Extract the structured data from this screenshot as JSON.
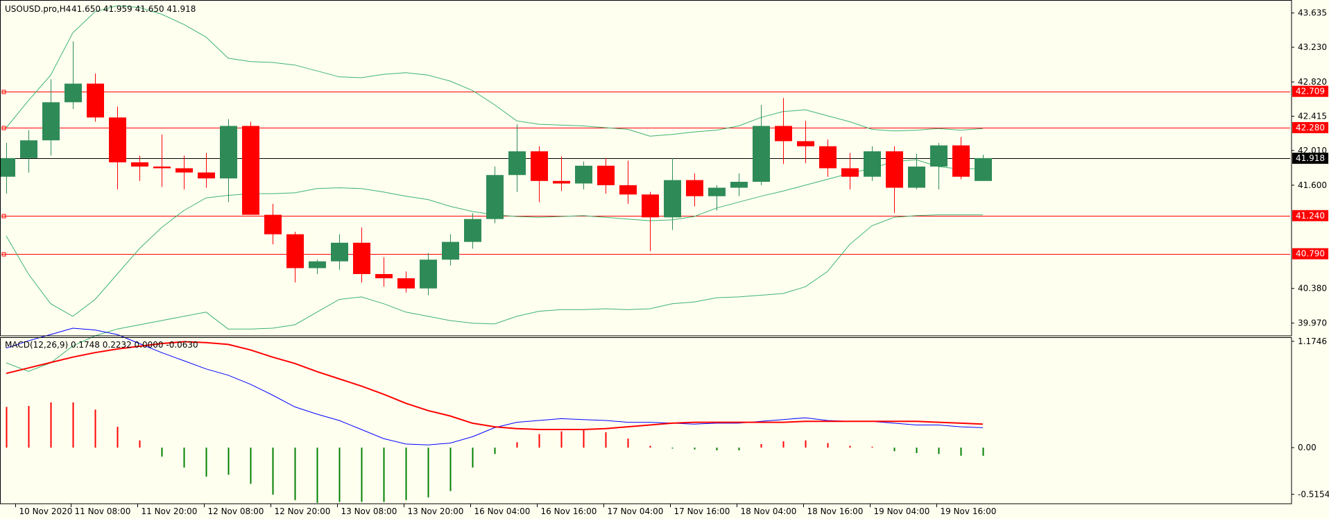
{
  "chart_data": [
    {
      "type": "candlestick",
      "symbol_header": "USOUSD.pro,H4",
      "ohlc_header": "41.650 41.959 41.650 41.918",
      "ylim": [
        39.82,
        43.78
      ],
      "y_ticks": [
        "43.635",
        "43.230",
        "42.820",
        "42.415",
        "42.010",
        "41.600",
        "40.380",
        "39.970"
      ],
      "x_tick_labels": [
        "10 Nov 2020",
        "11 Nov 08:00",
        "11 Nov 20:00",
        "12 Nov 08:00",
        "12 Nov 20:00",
        "13 Nov 08:00",
        "13 Nov 20:00",
        "16 Nov 04:00",
        "16 Nov 16:00",
        "17 Nov 04:00",
        "17 Nov 16:00",
        "18 Nov 04:00",
        "18 Nov 16:00",
        "19 Nov 04:00",
        "19 Nov 16:00"
      ],
      "x_tick_bars": [
        0.5,
        3,
        6,
        9,
        12,
        15,
        18,
        21,
        24,
        27,
        30,
        33,
        36,
        39,
        42
      ],
      "candles": [
        [
          41.7,
          42.1,
          41.5,
          41.92
        ],
        [
          41.92,
          42.25,
          41.75,
          42.13
        ],
        [
          42.13,
          42.85,
          41.95,
          42.58
        ],
        [
          42.58,
          43.3,
          42.5,
          42.8
        ],
        [
          42.8,
          42.92,
          42.35,
          42.4
        ],
        [
          42.4,
          42.53,
          41.55,
          41.87
        ],
        [
          41.87,
          41.95,
          41.65,
          41.82
        ],
        [
          41.82,
          42.2,
          41.58,
          41.8
        ],
        [
          41.8,
          41.95,
          41.55,
          41.75
        ],
        [
          41.75,
          41.98,
          41.57,
          41.68
        ],
        [
          41.68,
          42.38,
          41.4,
          42.3
        ],
        [
          42.3,
          42.35,
          41.25,
          41.25
        ],
        [
          41.25,
          41.38,
          40.9,
          41.02
        ],
        [
          41.02,
          41.05,
          40.45,
          40.62
        ],
        [
          40.62,
          40.72,
          40.55,
          40.7
        ],
        [
          40.7,
          41.02,
          40.6,
          40.92
        ],
        [
          40.92,
          41.1,
          40.45,
          40.55
        ],
        [
          40.55,
          40.75,
          40.4,
          40.5
        ],
        [
          40.5,
          40.58,
          40.33,
          40.38
        ],
        [
          40.38,
          40.8,
          40.3,
          40.72
        ],
        [
          40.72,
          41.02,
          40.65,
          40.93
        ],
        [
          40.93,
          41.27,
          40.85,
          41.2
        ],
        [
          41.2,
          41.82,
          41.15,
          41.72
        ],
        [
          41.72,
          42.32,
          41.52,
          42.0
        ],
        [
          42.0,
          42.06,
          41.4,
          41.65
        ],
        [
          41.65,
          41.94,
          41.53,
          41.62
        ],
        [
          41.62,
          41.88,
          41.55,
          41.83
        ],
        [
          41.83,
          41.92,
          41.5,
          41.6
        ],
        [
          41.6,
          41.89,
          41.38,
          41.49
        ],
        [
          41.49,
          41.52,
          40.82,
          41.22
        ],
        [
          41.22,
          41.92,
          41.07,
          41.66
        ],
        [
          41.66,
          41.74,
          41.35,
          41.47
        ],
        [
          41.47,
          41.6,
          41.3,
          41.57
        ],
        [
          41.57,
          41.74,
          41.47,
          41.64
        ],
        [
          41.64,
          42.55,
          41.6,
          42.3
        ],
        [
          42.3,
          42.63,
          41.85,
          42.12
        ],
        [
          42.12,
          42.36,
          41.86,
          42.06
        ],
        [
          42.06,
          42.14,
          41.7,
          41.8
        ],
        [
          41.8,
          41.98,
          41.55,
          41.7
        ],
        [
          41.7,
          42.06,
          41.65,
          42.0
        ],
        [
          42.0,
          42.06,
          41.27,
          41.57
        ],
        [
          41.57,
          41.97,
          41.55,
          41.82
        ],
        [
          41.82,
          42.1,
          41.55,
          42.07
        ],
        [
          42.07,
          42.17,
          41.67,
          41.7
        ],
        [
          41.65,
          41.96,
          41.65,
          41.92
        ]
      ],
      "bollinger_upper": [
        42.28,
        42.6,
        42.9,
        43.4,
        43.65,
        43.72,
        43.7,
        43.62,
        43.5,
        43.35,
        43.1,
        43.06,
        43.05,
        43.02,
        42.95,
        42.88,
        42.87,
        42.91,
        42.93,
        42.9,
        42.83,
        42.72,
        42.55,
        42.36,
        42.32,
        42.31,
        42.3,
        42.28,
        42.26,
        42.18,
        42.2,
        42.23,
        42.25,
        42.3,
        42.4,
        42.47,
        42.49,
        42.42,
        42.35,
        42.26,
        42.24,
        42.25,
        42.27,
        42.25,
        42.27
      ],
      "bollinger_middle": [
        41.0,
        40.55,
        40.2,
        40.05,
        40.25,
        40.55,
        40.85,
        41.1,
        41.3,
        41.45,
        41.48,
        41.5,
        41.5,
        41.51,
        41.56,
        41.57,
        41.56,
        41.52,
        41.47,
        41.43,
        41.35,
        41.29,
        41.25,
        41.23,
        41.22,
        41.23,
        41.24,
        41.22,
        41.2,
        41.18,
        41.19,
        41.23,
        41.33,
        41.4,
        41.47,
        41.53,
        41.6,
        41.67,
        41.74,
        41.8,
        41.88,
        41.9,
        41.82,
        41.79,
        41.8
      ],
      "bollinger_lower": [
        39.5,
        39.4,
        39.5,
        39.7,
        39.82,
        39.9,
        39.95,
        40.0,
        40.05,
        40.1,
        39.9,
        39.9,
        39.91,
        39.95,
        40.1,
        40.25,
        40.28,
        40.2,
        40.1,
        40.05,
        40.0,
        39.97,
        39.96,
        40.05,
        40.11,
        40.13,
        40.13,
        40.14,
        40.13,
        40.14,
        40.2,
        40.22,
        40.27,
        40.28,
        40.3,
        40.32,
        40.4,
        40.58,
        40.9,
        41.12,
        41.22,
        41.24,
        41.25,
        41.25,
        41.25
      ],
      "levels": [
        {
          "value": 42.709,
          "label": "42.709"
        },
        {
          "value": 42.28,
          "label": "42.280"
        },
        {
          "value": 41.24,
          "label": "41.240"
        },
        {
          "value": 40.79,
          "label": "40.790"
        }
      ],
      "current_price": {
        "value": 41.918,
        "label": "41.918"
      },
      "colors": {
        "bull": "#2e8b57",
        "bear": "#ff0000",
        "band": "#3cb371",
        "level": "#ff0000",
        "current": "#000000",
        "background": "#fffff0"
      }
    },
    {
      "type": "macd",
      "header": "MACD(12,26,9) 0.1748 0.2232 0.0000 -0.0630",
      "ylim": [
        -0.62,
        1.22
      ],
      "y_ticks": [
        "1.1746",
        "0.00",
        "-0.5154"
      ],
      "y_tick_values": [
        1.1746,
        0.0,
        -0.5154
      ],
      "histogram": [
        0.45,
        0.46,
        0.5,
        0.5,
        0.42,
        0.23,
        0.08,
        -0.1,
        -0.22,
        -0.32,
        -0.3,
        -0.4,
        -0.52,
        -0.58,
        -0.61,
        -0.6,
        -0.6,
        -0.6,
        -0.58,
        -0.55,
        -0.48,
        -0.22,
        -0.07,
        0.06,
        0.15,
        0.18,
        0.2,
        0.17,
        0.1,
        0.02,
        -0.01,
        -0.02,
        -0.03,
        -0.03,
        0.04,
        0.07,
        0.08,
        0.05,
        0.02,
        0.01,
        -0.04,
        -0.06,
        -0.07,
        -0.09,
        -0.09
      ],
      "macd_line": [
        1.1,
        1.18,
        1.25,
        1.32,
        1.3,
        1.25,
        1.15,
        1.05,
        0.96,
        0.87,
        0.8,
        0.7,
        0.58,
        0.45,
        0.37,
        0.3,
        0.2,
        0.1,
        0.04,
        0.03,
        0.05,
        0.12,
        0.22,
        0.28,
        0.3,
        0.32,
        0.31,
        0.3,
        0.28,
        0.28,
        0.27,
        0.26,
        0.27,
        0.27,
        0.29,
        0.31,
        0.33,
        0.3,
        0.29,
        0.29,
        0.27,
        0.25,
        0.25,
        0.23,
        0.22
      ],
      "signal_line": [
        0.82,
        0.88,
        0.94,
        1.0,
        1.05,
        1.09,
        1.12,
        1.15,
        1.17,
        1.16,
        1.14,
        1.08,
        1.0,
        0.93,
        0.84,
        0.76,
        0.68,
        0.59,
        0.49,
        0.41,
        0.35,
        0.27,
        0.23,
        0.21,
        0.2,
        0.2,
        0.2,
        0.21,
        0.23,
        0.25,
        0.27,
        0.28,
        0.28,
        0.28,
        0.28,
        0.28,
        0.29,
        0.29,
        0.29,
        0.29,
        0.29,
        0.29,
        0.28,
        0.27,
        0.26
      ],
      "colors": {
        "hist_pos": "#ff0000",
        "hist_neg": "#008000",
        "macd": "#0000ff",
        "signal": "#ff0000"
      }
    }
  ]
}
